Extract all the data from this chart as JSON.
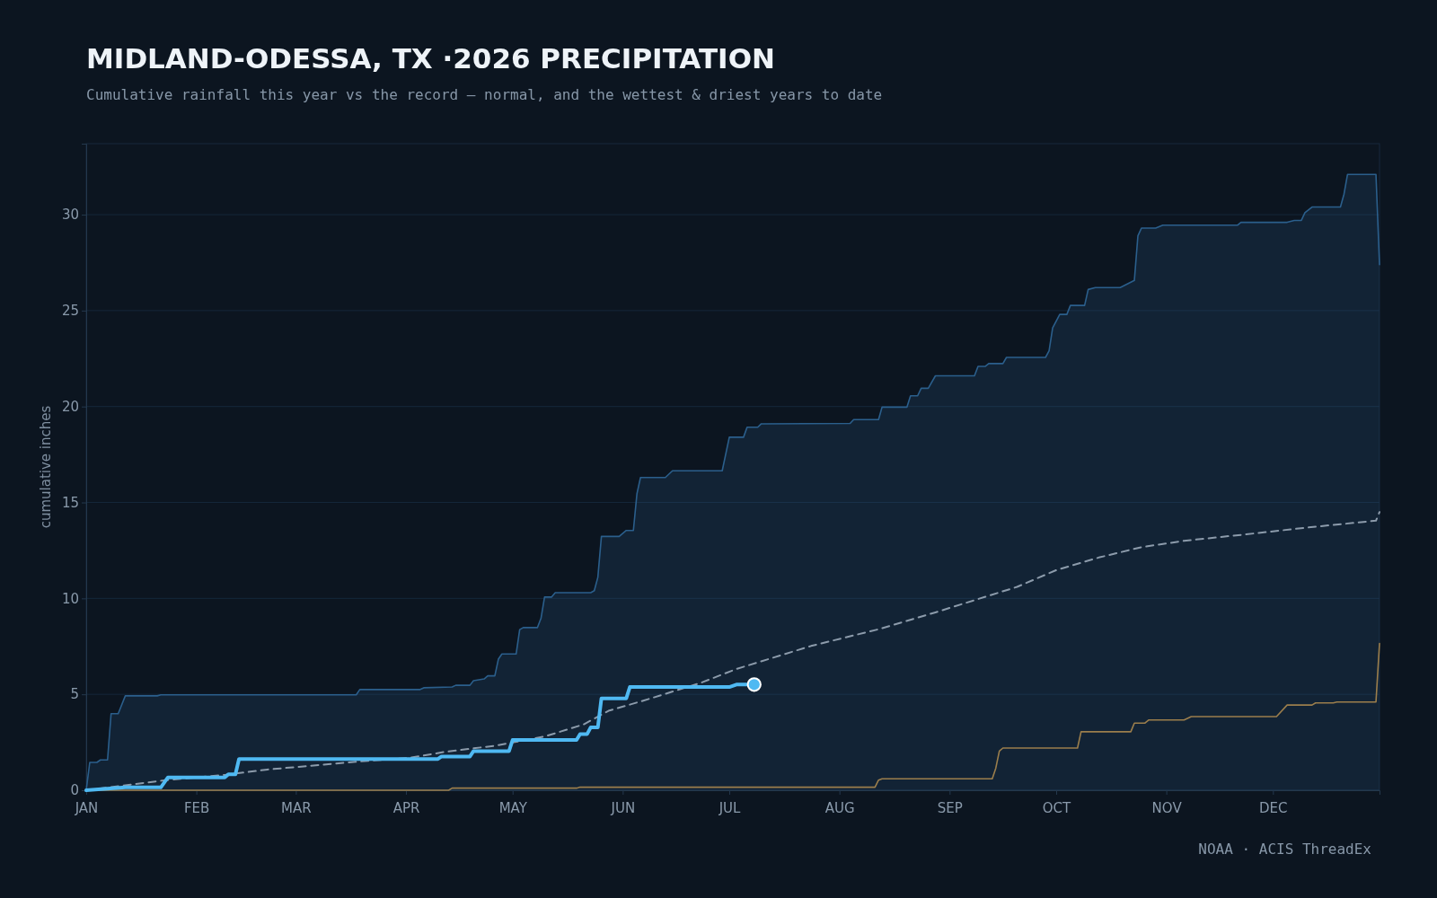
{
  "chart_data": {
    "type": "line",
    "title": "MIDLAND-ODESSA, TX ·2026 PRECIPITATION",
    "subtitle": "Cumulative rainfall this year vs the record — normal, and the wettest & driest years to date",
    "ylabel": "cumulative inches",
    "annotations": [
      "NOAA · ACIS ThreadEx"
    ],
    "xlim": [
      "--01-01",
      "--12-31"
    ],
    "xticks": [
      {
        "value": "--01-01",
        "label": "JAN"
      },
      {
        "value": "--02-01",
        "label": "FEB"
      },
      {
        "value": "--03-01",
        "label": "MAR"
      },
      {
        "value": "--04-01",
        "label": "APR"
      },
      {
        "value": "--05-01",
        "label": "MAY"
      },
      {
        "value": "--06-01",
        "label": "JUN"
      },
      {
        "value": "--07-01",
        "label": "JUL"
      },
      {
        "value": "--08-01",
        "label": "AUG"
      },
      {
        "value": "--09-01",
        "label": "SEP"
      },
      {
        "value": "--10-01",
        "label": "OCT"
      },
      {
        "value": "--11-01",
        "label": "NOV"
      },
      {
        "value": "--12-01",
        "label": "DEC"
      }
    ],
    "ylim": [
      0,
      33.7
    ],
    "yticks": [
      0,
      5,
      10,
      15,
      20,
      25,
      30
    ],
    "grid": "y",
    "series": [
      {
        "type": "area",
        "color": "#2b5f8c",
        "x": [
          "--01-01",
          "--01-02",
          "--01-04",
          "--01-05",
          "--01-07",
          "--01-08",
          "--01-10",
          "--01-12",
          "--01-21",
          "--01-22",
          "--03-18",
          "--03-19",
          "--04-05",
          "--04-06",
          "--04-14",
          "--04-15",
          "--04-19",
          "--04-20",
          "--04-23",
          "--04-24",
          "--04-26",
          "--04-27",
          "--04-28",
          "--05-02",
          "--05-03",
          "--05-04",
          "--05-08",
          "--05-09",
          "--05-10",
          "--05-12",
          "--05-13",
          "--05-23",
          "--05-24",
          "--05-25",
          "--05-26",
          "--05-31",
          "--06-02",
          "--06-04",
          "--06-05",
          "--06-06",
          "--06-13",
          "--06-15",
          "--06-29",
          "--07-01",
          "--07-05",
          "--07-06",
          "--07-09",
          "--07-10",
          "--08-04",
          "--08-05",
          "--08-12",
          "--08-13",
          "--08-20",
          "--08-21",
          "--08-23",
          "--08-24",
          "--08-26",
          "--08-28",
          "--09-08",
          "--09-09",
          "--09-11",
          "--09-12",
          "--09-16",
          "--09-17",
          "--09-28",
          "--09-29",
          "--09-30",
          "--10-02",
          "--10-04",
          "--10-05",
          "--10-09",
          "--10-10",
          "--10-12",
          "--10-19",
          "--10-23",
          "--10-24",
          "--10-25",
          "--10-29",
          "--10-31",
          "--11-21",
          "--11-22",
          "--12-05",
          "--12-07",
          "--12-09",
          "--12-10",
          "--12-12",
          "--12-20",
          "--12-21",
          "--12-22",
          "--12-30",
          "--12-31"
        ],
        "values": [
          0,
          1.45,
          1.45,
          1.58,
          1.58,
          3.99,
          3.99,
          4.92,
          4.92,
          4.97,
          4.97,
          5.25,
          5.25,
          5.34,
          5.38,
          5.47,
          5.47,
          5.71,
          5.8,
          5.96,
          5.96,
          6.83,
          7.1,
          7.1,
          8.37,
          8.48,
          8.48,
          8.96,
          10.07,
          10.07,
          10.3,
          10.3,
          10.4,
          11.1,
          13.23,
          13.23,
          13.54,
          13.54,
          15.45,
          16.3,
          16.3,
          16.65,
          16.65,
          18.4,
          18.4,
          18.92,
          18.92,
          19.1,
          19.12,
          19.32,
          19.32,
          19.97,
          19.97,
          20.56,
          20.56,
          20.95,
          20.95,
          21.6,
          21.6,
          22.09,
          22.09,
          22.24,
          22.24,
          22.56,
          22.56,
          22.9,
          24.1,
          24.8,
          24.8,
          25.27,
          25.27,
          26.1,
          26.2,
          26.2,
          26.57,
          28.9,
          29.3,
          29.3,
          29.45,
          29.45,
          29.6,
          29.6,
          29.7,
          29.7,
          30.1,
          30.4,
          30.4,
          31.07,
          32.1,
          32.1,
          27.4
        ]
      },
      {
        "type": "line",
        "color": "#9b7e4c",
        "x": [
          "--01-01",
          "--04-13",
          "--04-14",
          "--05-19",
          "--05-20",
          "--08-11",
          "--08-12",
          "--08-13",
          "--09-13",
          "--09-14",
          "--09-15",
          "--09-16",
          "--10-07",
          "--10-08",
          "--10-22",
          "--10-23",
          "--10-26",
          "--10-27",
          "--11-06",
          "--11-08",
          "--12-02",
          "--12-05",
          "--12-12",
          "--12-13",
          "--12-18",
          "--12-19",
          "--12-30",
          "--12-31"
        ],
        "values": [
          0,
          0,
          0.11,
          0.11,
          0.16,
          0.16,
          0.53,
          0.6,
          0.6,
          1.15,
          2.04,
          2.2,
          2.2,
          3.05,
          3.05,
          3.5,
          3.5,
          3.66,
          3.66,
          3.84,
          3.84,
          4.44,
          4.44,
          4.55,
          4.55,
          4.6,
          4.6,
          7.65
        ]
      },
      {
        "color": "#8c9bab",
        "line_style": "dashed",
        "x": [
          "--01-01",
          "--01-13",
          "--01-23",
          "--02-09",
          "--02-21",
          "--03-19",
          "--04-02",
          "--04-12",
          "--04-26",
          "--05-10",
          "--05-21",
          "--05-28",
          "--06-07",
          "--06-23",
          "--07-03",
          "--07-24",
          "--08-12",
          "--08-28",
          "--09-20",
          "--10-01",
          "--10-13",
          "--10-25",
          "--11-06",
          "--11-23",
          "--12-11",
          "--12-30",
          "--12-31"
        ],
        "values": [
          0,
          0.28,
          0.52,
          0.8,
          1.08,
          1.5,
          1.69,
          2.0,
          2.32,
          2.8,
          3.43,
          4.14,
          4.68,
          5.6,
          6.32,
          7.52,
          8.39,
          9.27,
          10.6,
          11.47,
          12.13,
          12.67,
          13.0,
          13.33,
          13.7,
          14.05,
          14.5
        ]
      },
      {
        "color": "#4fb9f2",
        "x": [
          "--01-01",
          "--01-12",
          "--01-22",
          "--01-24",
          "--02-09",
          "--02-10",
          "--02-12",
          "--02-13",
          "--04-10",
          "--04-11",
          "--04-19",
          "--04-20",
          "--04-30",
          "--05-01",
          "--05-19",
          "--05-20",
          "--05-22",
          "--05-23",
          "--05-25",
          "--05-26",
          "--06-02",
          "--06-03",
          "--07-01",
          "--07-03",
          "--07-08"
        ],
        "values": [
          0,
          0.15,
          0.15,
          0.67,
          0.67,
          0.83,
          0.83,
          1.63,
          1.63,
          1.76,
          1.76,
          2.04,
          2.04,
          2.62,
          2.62,
          2.93,
          2.93,
          3.28,
          3.28,
          4.79,
          4.79,
          5.38,
          5.38,
          5.51,
          5.51
        ]
      },
      {
        "type": "scatter",
        "color": "#4fb9f2",
        "marker": "circle",
        "x": [
          "--07-08"
        ],
        "values": [
          5.51
        ]
      }
    ]
  }
}
